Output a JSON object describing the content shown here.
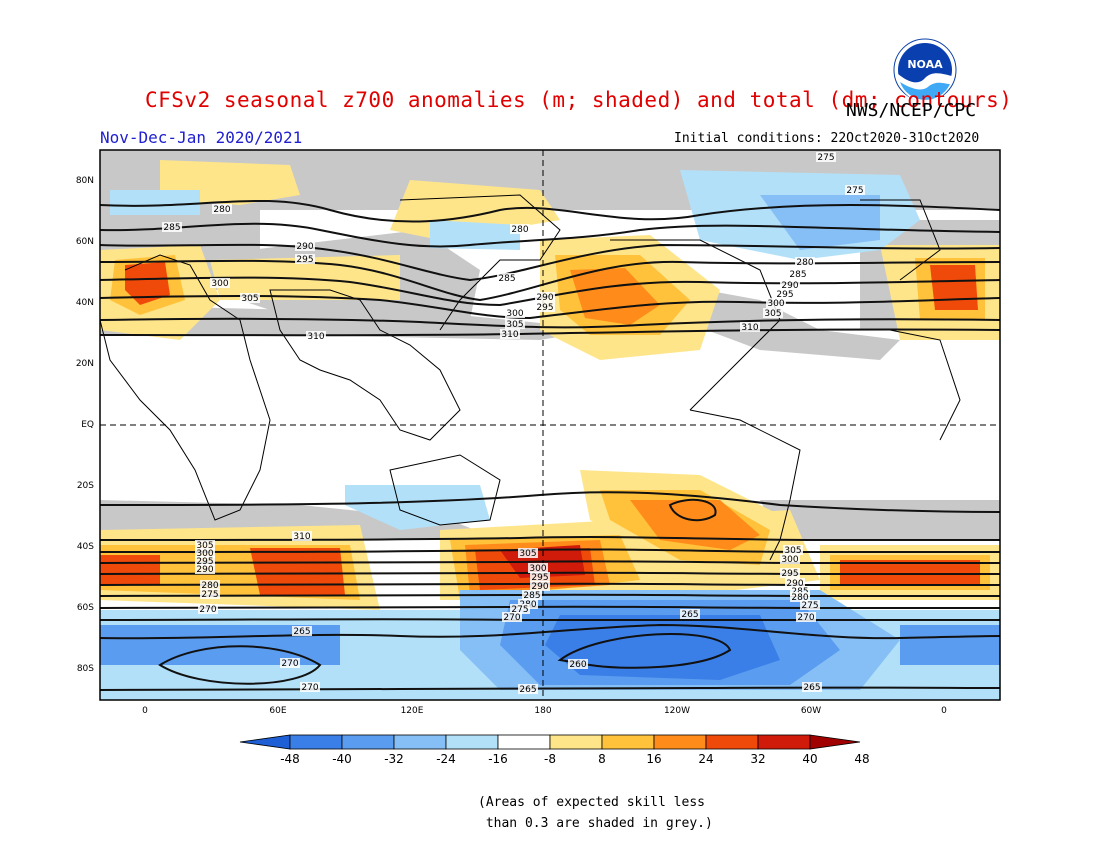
{
  "header": {
    "title": "CFSv2 seasonal z700 anomalies (m; shaded) and total (dm; contours)",
    "org": "NWS/NCEP/CPC",
    "season": "Nov-Dec-Jan 2020/2021",
    "initial_conditions": "Initial conditions: 22Oct2020-31Oct2020",
    "logo_text": "NOAA"
  },
  "axes": {
    "lat_labels": [
      "80N",
      "60N",
      "40N",
      "20N",
      "EQ",
      "20S",
      "40S",
      "60S",
      "80S"
    ],
    "lon_labels": [
      "0",
      "60E",
      "120E",
      "180",
      "120W",
      "60W",
      "0"
    ]
  },
  "colorbar": {
    "labels": [
      "-48",
      "-40",
      "-32",
      "-24",
      "-16",
      "-8",
      "8",
      "16",
      "24",
      "32",
      "40",
      "48"
    ],
    "colors": [
      "#1f5fd6",
      "#3a7fe8",
      "#5a9cf0",
      "#86bff5",
      "#b2e0f8",
      "#ffffff",
      "#ffe58a",
      "#ffc23a",
      "#ff8c1a",
      "#f04a0a",
      "#d01a0a",
      "#a00000"
    ]
  },
  "contour_labels": [
    {
      "name": "contour-label",
      "text": "275"
    },
    {
      "name": "contour-label",
      "text": "275"
    },
    {
      "name": "contour-label",
      "text": "280"
    },
    {
      "name": "contour-label",
      "text": "280"
    },
    {
      "name": "contour-label",
      "text": "280"
    },
    {
      "name": "contour-label",
      "text": "285"
    },
    {
      "name": "contour-label",
      "text": "285"
    },
    {
      "name": "contour-label",
      "text": "285"
    },
    {
      "name": "contour-label",
      "text": "290"
    },
    {
      "name": "contour-label",
      "text": "290"
    },
    {
      "name": "contour-label",
      "text": "290"
    },
    {
      "name": "contour-label",
      "text": "295"
    },
    {
      "name": "contour-label",
      "text": "295"
    },
    {
      "name": "contour-label",
      "text": "295"
    },
    {
      "name": "contour-label",
      "text": "300"
    },
    {
      "name": "contour-label",
      "text": "300"
    },
    {
      "name": "contour-label",
      "text": "300"
    },
    {
      "name": "contour-label",
      "text": "305"
    },
    {
      "name": "contour-label",
      "text": "305"
    },
    {
      "name": "contour-label",
      "text": "305"
    },
    {
      "name": "contour-label",
      "text": "310"
    },
    {
      "name": "contour-label",
      "text": "310"
    },
    {
      "name": "contour-label",
      "text": "310"
    },
    {
      "name": "contour-label",
      "text": "310"
    },
    {
      "name": "contour-label",
      "text": "305"
    },
    {
      "name": "contour-label",
      "text": "300"
    },
    {
      "name": "contour-label",
      "text": "295"
    },
    {
      "name": "contour-label",
      "text": "290"
    },
    {
      "name": "contour-label",
      "text": "280"
    },
    {
      "name": "contour-label",
      "text": "275"
    },
    {
      "name": "contour-label",
      "text": "270"
    },
    {
      "name": "contour-label",
      "text": "305"
    },
    {
      "name": "contour-label",
      "text": "300"
    },
    {
      "name": "contour-label",
      "text": "295"
    },
    {
      "name": "contour-label",
      "text": "290"
    },
    {
      "name": "contour-label",
      "text": "285"
    },
    {
      "name": "contour-label",
      "text": "280"
    },
    {
      "name": "contour-label",
      "text": "275"
    },
    {
      "name": "contour-label",
      "text": "270"
    },
    {
      "name": "contour-label",
      "text": "305"
    },
    {
      "name": "contour-label",
      "text": "300"
    },
    {
      "name": "contour-label",
      "text": "295"
    },
    {
      "name": "contour-label",
      "text": "290"
    },
    {
      "name": "contour-label",
      "text": "285"
    },
    {
      "name": "contour-label",
      "text": "280"
    },
    {
      "name": "contour-label",
      "text": "275"
    },
    {
      "name": "contour-label",
      "text": "270"
    },
    {
      "name": "contour-label",
      "text": "265"
    },
    {
      "name": "contour-label",
      "text": "265"
    },
    {
      "name": "contour-label",
      "text": "270"
    },
    {
      "name": "contour-label",
      "text": "270"
    },
    {
      "name": "contour-label",
      "text": "265"
    },
    {
      "name": "contour-label",
      "text": "260"
    },
    {
      "name": "contour-label",
      "text": "265"
    }
  ],
  "footnote": "(Areas of expected skill less\n than 0.3 are shaded in grey.)"
}
